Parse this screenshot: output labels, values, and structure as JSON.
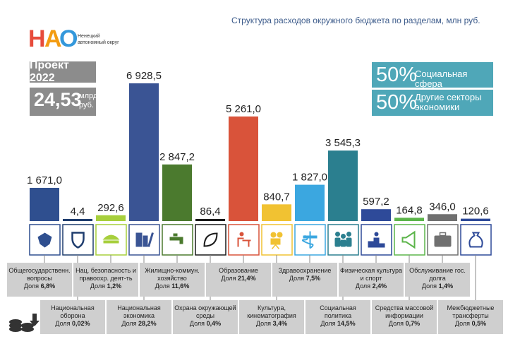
{
  "logo": {
    "letters": "НАО",
    "subtitle_line1": "Ненецкий",
    "subtitle_line2": "автономный округ"
  },
  "title": "Структура расходов окружного бюджета по разделам, млн руб.",
  "project": {
    "label": "Проект 2022",
    "value": "24,53",
    "unit_line1": "млрд.",
    "unit_line2": "руб."
  },
  "shares": [
    {
      "pct": "50%",
      "label_line1": "Социальная сфера",
      "label_line2": ""
    },
    {
      "pct": "50%",
      "label_line1": "Другие секторы",
      "label_line2": "экономики"
    }
  ],
  "colors": {
    "title": "#3b5a8a",
    "grey": "#8c8c8c",
    "teal": "#4fa7b8",
    "cat_box": "#cfcfcf"
  },
  "chart_data": {
    "type": "bar",
    "categories": [
      "Общегосударственн. вопросы",
      "Национальная оборона",
      "Нац. безопасность и правоохр. деят-ть",
      "Национальная экономика",
      "Жилищно-коммун. хозяйство",
      "Охрана окружающей среды",
      "Образование",
      "Культура, кинематография",
      "Здравоохранение",
      "Социальная политика",
      "Физическая культура и спорт",
      "Средства массовой информации",
      "Обслуживание гос. долга",
      "Межбюджетные трансферты"
    ],
    "values": [
      1671.0,
      4.4,
      292.6,
      6928.5,
      2847.2,
      86.4,
      5261.0,
      840.7,
      1827.0,
      3545.3,
      597.2,
      164.8,
      346.0,
      120.6
    ],
    "value_labels": [
      "1 671,0",
      "4,4",
      "292,6",
      "6 928,5",
      "2 847,2",
      "86,4",
      "5 261,0",
      "840,7",
      "1 827,0",
      "3 545,3",
      "597,2",
      "164,8",
      "346,0",
      "120,6"
    ],
    "colors": [
      "#2f4f8f",
      "#1f3d6e",
      "#a7cf3c",
      "#3a5494",
      "#4b7a2e",
      "#1a1a1a",
      "#d9533a",
      "#f1c232",
      "#3ba7e0",
      "#2b7f8f",
      "#2e4a99",
      "#5cb54a",
      "#707070",
      "#2e4a99"
    ],
    "shares": [
      "6,8%",
      "0,02%",
      "1,2%",
      "28,2%",
      "11,6%",
      "0,4%",
      "21,4%",
      "3,4%",
      "7,5%",
      "14,5%",
      "2,4%",
      "0,7%",
      "1,4%",
      "0,5%"
    ],
    "share_prefix": "Доля",
    "icons": [
      "emblem-icon",
      "shield-icon",
      "police-cap-icon",
      "road-city-icon",
      "water-tap-icon",
      "leaf-icon",
      "student-desk-icon",
      "film-camera-icon",
      "medical-caduceus-icon",
      "family-icon",
      "sport-podium-icon",
      "megaphone-icon",
      "briefcase-icon",
      "money-bag-icon"
    ]
  }
}
